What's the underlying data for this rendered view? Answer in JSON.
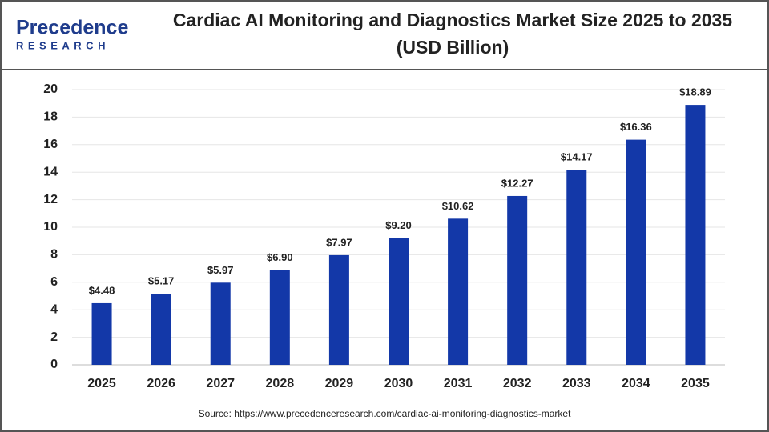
{
  "logo": {
    "name": "Precedence",
    "tagline": "RESEARCH"
  },
  "chart_data": {
    "type": "bar",
    "title": "Cardiac AI Monitoring and Diagnostics Market Size 2025 to 2035 (USD Billion)",
    "categories": [
      "2025",
      "2026",
      "2027",
      "2028",
      "2029",
      "2030",
      "2031",
      "2032",
      "2033",
      "2034",
      "2035"
    ],
    "values": [
      4.48,
      5.17,
      5.97,
      6.9,
      7.97,
      9.2,
      10.62,
      12.27,
      14.17,
      16.36,
      18.89
    ],
    "value_labels": [
      "$4.48",
      "$5.17",
      "$5.97",
      "$6.90",
      "$7.97",
      "$9.20",
      "$10.62",
      "$12.27",
      "$14.17",
      "$16.36",
      "$18.89"
    ],
    "color": "#1338a8",
    "ylim": [
      0,
      20
    ],
    "yticks": [
      0,
      2,
      4,
      6,
      8,
      10,
      12,
      14,
      16,
      18,
      20
    ],
    "grid": true,
    "source": "Source: https://www.precedenceresearch.com/cardiac-ai-monitoring-diagnostics-market"
  }
}
